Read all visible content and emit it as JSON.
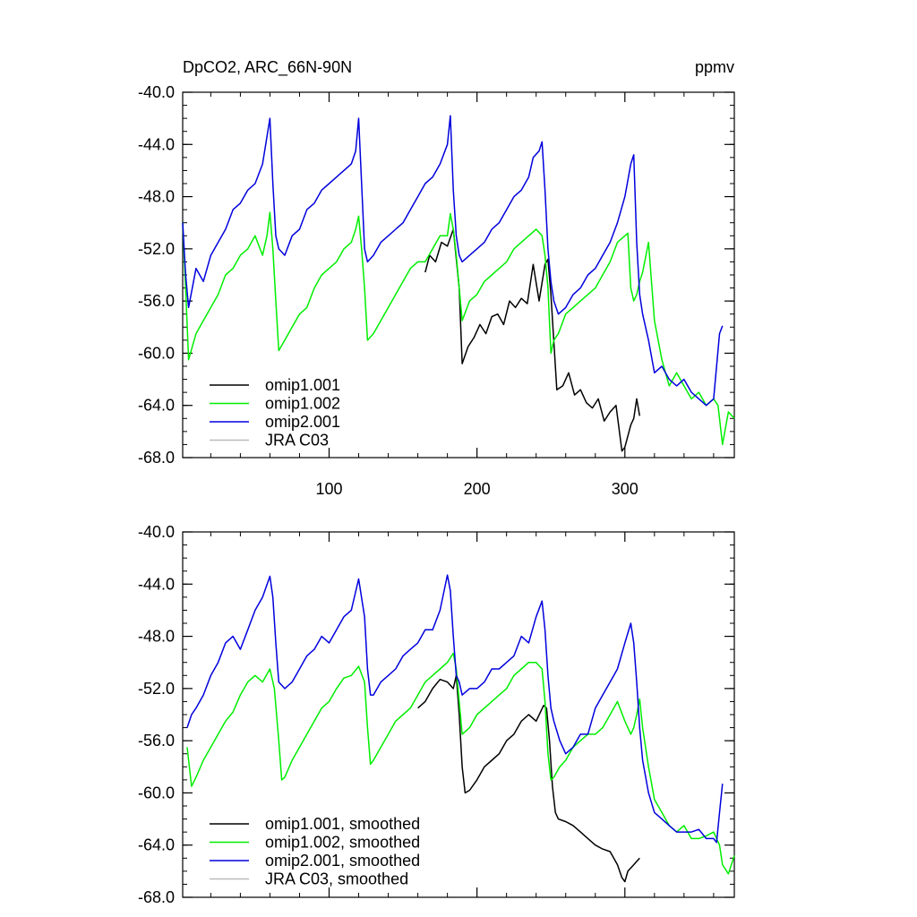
{
  "chart_data": [
    {
      "type": "line",
      "title": "DpCO2, ARC_66N-90N",
      "units_label": "ppmv",
      "xlim": [
        1,
        374
      ],
      "ylim": [
        -68,
        -40
      ],
      "yticks": [
        -40,
        -44,
        -48,
        -52,
        -56,
        -60,
        -64,
        -68
      ],
      "ytick_labels": [
        "-40.0",
        "-44.0",
        "-48.0",
        "-52.0",
        "-56.0",
        "-60.0",
        "-64.0",
        "-68.0"
      ],
      "xticks": [
        100,
        200,
        300
      ],
      "xtick_labels": [
        "100",
        "200",
        "300"
      ],
      "legend_position": "bottom-left",
      "series": [
        {
          "name": "omip1.001",
          "color": "#000000",
          "x": [
            165,
            168,
            172,
            176,
            180,
            184,
            188,
            190,
            194,
            198,
            202,
            206,
            210,
            214,
            218,
            222,
            226,
            230,
            234,
            238,
            242,
            246,
            248,
            250,
            254,
            258,
            262,
            266,
            270,
            274,
            278,
            282,
            286,
            290,
            294,
            298,
            300,
            304,
            306,
            308,
            310
          ],
          "y": [
            -53.8,
            -52.5,
            -53.0,
            -51.5,
            -51.8,
            -50.5,
            -55.0,
            -60.8,
            -59.5,
            -58.8,
            -57.8,
            -58.5,
            -57.2,
            -57.0,
            -57.8,
            -56.0,
            -56.5,
            -55.8,
            -56.2,
            -53.2,
            -56.0,
            -53.2,
            -52.8,
            -55.5,
            -62.8,
            -62.5,
            -61.5,
            -63.2,
            -62.8,
            -63.8,
            -64.2,
            -63.5,
            -65.2,
            -64.5,
            -64.0,
            -67.5,
            -67.2,
            -65.5,
            -65.0,
            -63.5,
            -64.8
          ]
        },
        {
          "name": "omip1.002",
          "color": "#00ee00",
          "x": [
            1,
            3,
            5,
            10,
            15,
            20,
            25,
            30,
            35,
            40,
            45,
            50,
            55,
            58,
            60,
            62,
            64,
            66,
            70,
            75,
            80,
            85,
            90,
            95,
            100,
            105,
            110,
            115,
            118,
            120,
            122,
            124,
            126,
            130,
            135,
            140,
            145,
            150,
            155,
            160,
            165,
            170,
            175,
            180,
            182,
            184,
            186,
            188,
            190,
            195,
            200,
            205,
            210,
            215,
            220,
            225,
            230,
            235,
            240,
            244,
            246,
            248,
            250,
            252,
            255,
            260,
            265,
            270,
            275,
            280,
            285,
            290,
            295,
            300,
            302,
            304,
            306,
            308,
            310,
            312,
            316,
            320,
            325,
            330,
            335,
            340,
            345,
            350,
            355,
            360,
            363,
            366,
            370,
            374
          ],
          "y": [
            -50.0,
            -55.0,
            -60.5,
            -58.5,
            -57.5,
            -56.5,
            -55.5,
            -54.0,
            -53.5,
            -52.5,
            -52.0,
            -51.0,
            -52.5,
            -51.0,
            -49.2,
            -52.0,
            -56.0,
            -59.8,
            -59.0,
            -58.0,
            -57.0,
            -56.5,
            -55.0,
            -54.0,
            -53.5,
            -53.0,
            -52.0,
            -51.5,
            -50.5,
            -49.5,
            -52.0,
            -55.0,
            -59.0,
            -58.5,
            -57.5,
            -56.5,
            -55.5,
            -54.5,
            -53.5,
            -53.0,
            -53.0,
            -52.0,
            -51.0,
            -51.0,
            -49.3,
            -50.5,
            -52.5,
            -55.0,
            -57.5,
            -56.0,
            -55.5,
            -54.5,
            -54.0,
            -53.5,
            -53.0,
            -52.0,
            -51.5,
            -51.0,
            -50.5,
            -51.0,
            -52.5,
            -55.0,
            -60.0,
            -59.0,
            -58.5,
            -57.0,
            -56.5,
            -56.0,
            -55.5,
            -55.0,
            -54.0,
            -53.0,
            -51.5,
            -51.0,
            -50.8,
            -55.0,
            -56.0,
            -55.5,
            -54.5,
            -53.8,
            -51.5,
            -57.5,
            -60.5,
            -62.5,
            -61.5,
            -62.5,
            -63.5,
            -63.0,
            -64.0,
            -63.5,
            -64.0,
            -67.0,
            -64.5,
            -65.0
          ]
        },
        {
          "name": "omip2.001",
          "color": "#0000dd",
          "x": [
            1,
            3,
            5,
            10,
            15,
            20,
            25,
            30,
            35,
            40,
            45,
            50,
            55,
            60,
            62,
            64,
            66,
            70,
            75,
            80,
            85,
            90,
            95,
            100,
            105,
            110,
            115,
            118,
            120,
            122,
            124,
            126,
            130,
            135,
            140,
            145,
            150,
            155,
            160,
            165,
            170,
            175,
            180,
            182,
            184,
            186,
            188,
            190,
            195,
            200,
            205,
            210,
            215,
            220,
            225,
            230,
            235,
            238,
            242,
            244,
            246,
            248,
            250,
            252,
            255,
            260,
            265,
            270,
            275,
            280,
            285,
            290,
            295,
            300,
            304,
            306,
            308,
            310,
            312,
            316,
            320,
            325,
            330,
            335,
            340,
            345,
            350,
            355,
            360,
            362,
            364,
            366
          ],
          "y": [
            -50.0,
            -54.0,
            -56.5,
            -53.5,
            -54.5,
            -52.5,
            -51.5,
            -50.5,
            -49.0,
            -48.5,
            -47.5,
            -47.0,
            -45.5,
            -42.0,
            -47.0,
            -51.0,
            -52.0,
            -52.5,
            -51.0,
            -50.5,
            -49.0,
            -48.5,
            -47.5,
            -47.0,
            -46.5,
            -46.0,
            -45.5,
            -44.5,
            -42.0,
            -47.0,
            -52.0,
            -53.0,
            -52.5,
            -51.5,
            -51.0,
            -50.5,
            -50.0,
            -49.0,
            -48.0,
            -47.0,
            -46.5,
            -45.5,
            -44.0,
            -41.8,
            -47.5,
            -51.0,
            -52.5,
            -53.0,
            -52.5,
            -52.0,
            -51.5,
            -50.5,
            -50.0,
            -49.0,
            -48.0,
            -47.5,
            -46.5,
            -45.0,
            -44.5,
            -43.8,
            -47.5,
            -52.0,
            -54.5,
            -56.0,
            -57.0,
            -56.5,
            -55.5,
            -55.0,
            -54.0,
            -53.5,
            -52.5,
            -51.5,
            -50.0,
            -48.0,
            -45.5,
            -44.8,
            -51.5,
            -55.5,
            -57.0,
            -59.0,
            -61.5,
            -61.0,
            -62.0,
            -62.5,
            -62.0,
            -63.0,
            -63.5,
            -64.0,
            -63.5,
            -61.0,
            -58.5,
            -57.9
          ]
        },
        {
          "name": "JRA C03",
          "color": "#bbbbbb",
          "x": [],
          "y": []
        }
      ]
    },
    {
      "type": "line",
      "xlim": [
        1,
        374
      ],
      "ylim": [
        -68,
        -40
      ],
      "yticks": [
        -40,
        -44,
        -48,
        -52,
        -56,
        -60,
        -64,
        -68
      ],
      "ytick_labels": [
        "-40.0",
        "-44.0",
        "-48.0",
        "-52.0",
        "-56.0",
        "-60.0",
        "-64.0",
        "-68.0"
      ],
      "xticks": [
        100,
        200,
        300
      ],
      "legend_position": "bottom-left",
      "series": [
        {
          "name": "omip1.001, smoothed",
          "color": "#000000",
          "x": [
            160,
            165,
            170,
            175,
            180,
            184,
            186,
            188,
            190,
            192,
            195,
            200,
            205,
            210,
            215,
            220,
            225,
            230,
            235,
            240,
            245,
            247,
            249,
            251,
            253,
            255,
            260,
            265,
            270,
            275,
            280,
            285,
            290,
            295,
            298,
            300,
            302,
            306,
            310
          ],
          "y": [
            -53.5,
            -53.0,
            -52.0,
            -51.3,
            -51.5,
            -52.0,
            -51.0,
            -54.0,
            -58.0,
            -60.0,
            -59.8,
            -59.0,
            -58.0,
            -57.5,
            -57.0,
            -56.0,
            -55.5,
            -54.5,
            -54.0,
            -54.5,
            -53.3,
            -53.5,
            -56.0,
            -59.5,
            -61.5,
            -62.0,
            -62.2,
            -62.5,
            -63.0,
            -63.5,
            -64.0,
            -64.3,
            -64.5,
            -65.5,
            -66.5,
            -66.8,
            -66.0,
            -65.5,
            -65.0
          ]
        },
        {
          "name": "omip1.002, smoothed",
          "color": "#00ee00",
          "x": [
            4,
            7,
            10,
            15,
            20,
            25,
            30,
            35,
            40,
            45,
            50,
            55,
            60,
            63,
            66,
            68,
            70,
            75,
            80,
            85,
            90,
            95,
            100,
            105,
            110,
            115,
            120,
            124,
            126,
            128,
            130,
            135,
            140,
            145,
            150,
            155,
            160,
            165,
            170,
            175,
            180,
            184,
            186,
            188,
            190,
            195,
            200,
            205,
            210,
            215,
            220,
            225,
            230,
            235,
            240,
            244,
            246,
            248,
            250,
            252,
            256,
            260,
            265,
            270,
            275,
            280,
            285,
            290,
            295,
            300,
            304,
            306,
            308,
            310,
            312,
            316,
            320,
            325,
            330,
            335,
            340,
            345,
            350,
            355,
            360,
            364,
            366,
            370,
            374
          ],
          "y": [
            -56.5,
            -59.5,
            -58.8,
            -57.5,
            -56.5,
            -55.5,
            -54.5,
            -53.8,
            -52.5,
            -51.5,
            -51.0,
            -51.5,
            -50.5,
            -52.0,
            -56.0,
            -59.0,
            -58.8,
            -57.5,
            -56.5,
            -55.5,
            -54.5,
            -53.5,
            -53.0,
            -52.0,
            -51.2,
            -51.0,
            -50.3,
            -51.5,
            -55.0,
            -57.8,
            -57.5,
            -56.5,
            -55.5,
            -54.5,
            -54.0,
            -53.5,
            -52.5,
            -51.5,
            -51.0,
            -50.5,
            -50.0,
            -49.3,
            -50.5,
            -53.0,
            -55.5,
            -55.0,
            -54.0,
            -53.5,
            -53.0,
            -52.5,
            -52.0,
            -51.0,
            -50.5,
            -50.0,
            -50.0,
            -50.5,
            -53.0,
            -57.0,
            -59.0,
            -58.8,
            -58.0,
            -57.5,
            -56.5,
            -56.0,
            -55.5,
            -55.5,
            -55.0,
            -54.0,
            -53.0,
            -54.5,
            -55.5,
            -55.0,
            -54.0,
            -52.8,
            -55.0,
            -58.0,
            -60.5,
            -61.5,
            -62.5,
            -63.0,
            -62.5,
            -63.5,
            -63.5,
            -63.3,
            -63.0,
            -64.0,
            -65.5,
            -66.2,
            -64.8
          ]
        },
        {
          "name": "omip2.001, smoothed",
          "color": "#0000dd",
          "x": [
            4,
            7,
            10,
            15,
            20,
            25,
            30,
            35,
            40,
            45,
            50,
            55,
            60,
            62,
            64,
            66,
            70,
            75,
            80,
            85,
            90,
            95,
            100,
            105,
            110,
            115,
            120,
            124,
            126,
            128,
            130,
            135,
            140,
            145,
            150,
            155,
            160,
            165,
            170,
            175,
            180,
            182,
            184,
            186,
            188,
            190,
            195,
            200,
            205,
            210,
            215,
            220,
            225,
            230,
            235,
            240,
            244,
            246,
            248,
            250,
            252,
            256,
            260,
            265,
            270,
            275,
            280,
            285,
            290,
            295,
            300,
            304,
            306,
            308,
            310,
            312,
            316,
            320,
            325,
            330,
            335,
            340,
            345,
            350,
            355,
            360,
            362,
            364,
            366
          ],
          "y": [
            -55.0,
            -54.0,
            -53.5,
            -52.5,
            -51.0,
            -50.0,
            -48.5,
            -48.0,
            -49.0,
            -47.5,
            -46.0,
            -45.0,
            -43.4,
            -45.0,
            -48.5,
            -51.5,
            -52.0,
            -51.5,
            -50.5,
            -49.5,
            -49.0,
            -48.0,
            -48.5,
            -47.5,
            -46.5,
            -46.0,
            -43.6,
            -46.5,
            -50.5,
            -52.5,
            -52.5,
            -51.5,
            -51.0,
            -50.5,
            -49.5,
            -49.0,
            -48.5,
            -47.5,
            -47.5,
            -46.0,
            -43.3,
            -44.5,
            -48.0,
            -51.0,
            -51.5,
            -52.5,
            -52.0,
            -52.0,
            -51.5,
            -50.5,
            -50.5,
            -50.0,
            -49.5,
            -48.0,
            -48.5,
            -46.5,
            -45.3,
            -47.5,
            -51.0,
            -53.5,
            -54.5,
            -56.0,
            -57.0,
            -56.5,
            -55.5,
            -55.5,
            -53.5,
            -52.5,
            -51.5,
            -50.5,
            -48.5,
            -47.0,
            -48.5,
            -51.5,
            -55.0,
            -57.5,
            -60.0,
            -61.5,
            -62.0,
            -62.5,
            -63.0,
            -63.0,
            -63.0,
            -62.8,
            -63.5,
            -63.5,
            -63.8,
            -61.5,
            -59.3
          ]
        },
        {
          "name": "JRA C03, smoothed",
          "color": "#bbbbbb",
          "x": [],
          "y": []
        }
      ]
    }
  ]
}
